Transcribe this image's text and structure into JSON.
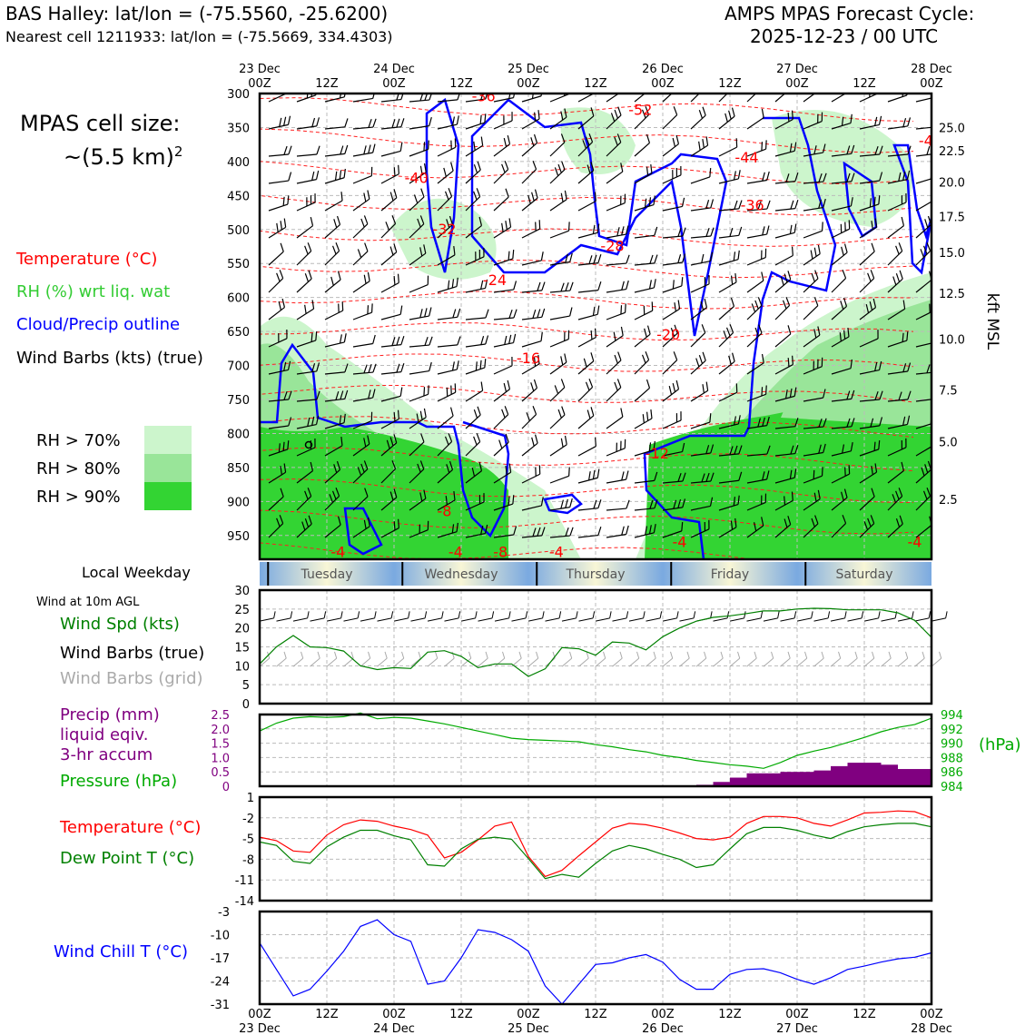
{
  "header": {
    "station_line": "BAS Halley: lat/lon = (-75.5560, -25.6200)",
    "cell_line": "Nearest cell 1211933: lat/lon = (-75.5669, 334.4303)",
    "cycle_title": "AMPS MPAS Forecast Cycle:",
    "cycle_time": "2025-12-23 / 00 UTC"
  },
  "legend": {
    "cell_size_label": "MPAS cell size:",
    "cell_size_value": "~(5.5 km)",
    "cell_size_exp": "2",
    "temperature": "Temperature (°C)",
    "rh": "RH (%) wrt liq. wat",
    "cloud": "Cloud/Precip outline",
    "wind_barbs": "Wind Barbs (kts) (true)",
    "rh70": "RH > 70%",
    "rh80": "RH > 80%",
    "rh90": "RH > 90%",
    "local_weekday": "Local Weekday",
    "wind10m": "Wind at 10m AGL",
    "wind_spd": "Wind Spd (kts)",
    "barbs_true": "Wind Barbs (true)",
    "barbs_grid": "Wind Barbs (grid)",
    "precip1": "Precip (mm)",
    "precip2": "liquid eqiv.",
    "precip3": "3-hr accum",
    "pressure": "Pressure (hPa)",
    "hpa": "(hPa)",
    "temp2": "Temperature (°C)",
    "dewpoint": "Dew Point T (°C)",
    "windchill": "Wind Chill T (°C)",
    "kft": "kft MSL"
  },
  "colors": {
    "temp": "#ff0000",
    "rh_label": "#33cc33",
    "cloud": "#0000ff",
    "wind_spd": "#008000",
    "precip": "#800080",
    "pressure": "#00aa00",
    "grid_barbs": "#aaaaaa",
    "rh70": "#ccf5cc",
    "rh80": "#99e599",
    "rh90": "#33d433"
  },
  "chart_data": [
    {
      "type": "time-height",
      "name": "cross-section",
      "x_top_labels": [
        [
          "23 Dec",
          "00Z"
        ],
        [
          "",
          "12Z"
        ],
        [
          "24 Dec",
          "00Z"
        ],
        [
          "",
          "12Z"
        ],
        [
          "25 Dec",
          "00Z"
        ],
        [
          "",
          "12Z"
        ],
        [
          "26 Dec",
          "00Z"
        ],
        [
          "",
          "12Z"
        ],
        [
          "27 Dec",
          "00Z"
        ],
        [
          "",
          "12Z"
        ],
        [
          "28 Dec",
          "00Z"
        ]
      ],
      "x_hours_range": [
        0,
        120
      ],
      "pressure_ticks": [
        300,
        350,
        400,
        450,
        500,
        550,
        600,
        650,
        700,
        750,
        800,
        850,
        900,
        950
      ],
      "ylim_hpa": [
        300,
        985
      ],
      "kft_ticks": [
        [
          "25.0",
          350
        ],
        [
          "22.5",
          384
        ],
        [
          "20.0",
          430
        ],
        [
          "17.5",
          481
        ],
        [
          "15.0",
          534
        ],
        [
          "12.5",
          594
        ],
        [
          "10.0",
          661
        ],
        [
          "7.5",
          736
        ],
        [
          "5.0",
          812
        ],
        [
          "2.5",
          897
        ]
      ],
      "temp_labels": [
        {
          "t": "-36",
          "h": 40,
          "p": 305
        },
        {
          "t": "-52",
          "h": 68,
          "p": 325
        },
        {
          "t": "-4",
          "h": 119,
          "p": 370
        },
        {
          "t": "-44",
          "h": 87,
          "p": 395
        },
        {
          "t": "-40",
          "h": 28,
          "p": 425
        },
        {
          "t": "-36",
          "h": 88,
          "p": 465
        },
        {
          "t": "-32",
          "h": 33,
          "p": 500
        },
        {
          "t": "-28",
          "h": 63,
          "p": 525
        },
        {
          "t": "-24",
          "h": 42,
          "p": 575
        },
        {
          "t": "-20",
          "h": 73,
          "p": 655
        },
        {
          "t": "-16",
          "h": 48,
          "p": 690
        },
        {
          "t": "-12",
          "h": 71,
          "p": 830
        },
        {
          "t": "-8",
          "h": 33,
          "p": 915
        },
        {
          "t": "-4",
          "h": 14,
          "p": 975
        },
        {
          "t": "-4",
          "h": 35,
          "p": 975
        },
        {
          "t": "-8",
          "h": 43,
          "p": 975
        },
        {
          "t": "-4",
          "h": 53,
          "p": 975
        },
        {
          "t": "-4",
          "h": 75,
          "p": 960
        },
        {
          "t": "-4",
          "h": 117,
          "p": 960
        }
      ]
    },
    {
      "type": "weekday-bar",
      "name": "local-weekday",
      "days": [
        "Tuesday",
        "Wednesday",
        "Thursday",
        "Friday",
        "Saturday"
      ]
    },
    {
      "type": "line",
      "name": "wind-speed",
      "title": "Wind at 10m AGL",
      "series_name": "Wind Spd (kts)",
      "x_hours": [
        0,
        3,
        6,
        9,
        12,
        15,
        18,
        21,
        24,
        27,
        30,
        33,
        36,
        39,
        42,
        45,
        48,
        51,
        54,
        57,
        60,
        63,
        66,
        69,
        72,
        75,
        78,
        81,
        84,
        87,
        90,
        93,
        96,
        99,
        102,
        105,
        108,
        111,
        114,
        117,
        120
      ],
      "values": [
        10.5,
        15,
        18,
        15,
        14.8,
        13.9,
        10,
        9,
        9.5,
        9.3,
        13.6,
        14,
        12.5,
        9.5,
        10.5,
        10.5,
        7.2,
        9.2,
        14.8,
        14.5,
        12.8,
        16.3,
        16,
        14.2,
        17.7,
        20,
        21.8,
        22.8,
        23.2,
        23.8,
        24.5,
        24.5,
        25,
        25.2,
        25.1,
        24.8,
        24.8,
        24.8,
        24,
        22,
        17.5
      ],
      "ylim": [
        0,
        30
      ],
      "yticks": [
        0,
        5,
        10,
        15,
        20,
        25,
        30
      ]
    },
    {
      "type": "bar+line",
      "name": "precip-pressure",
      "precip_ylim": [
        0,
        2.5
      ],
      "precip_ticks": [
        "0",
        "0.5",
        "1.0",
        "1.5",
        "2.0",
        "2.5"
      ],
      "precip_bars": [
        {
          "start": 78,
          "end": 81,
          "value": 0.05
        },
        {
          "start": 81,
          "end": 84,
          "value": 0.15
        },
        {
          "start": 84,
          "end": 87,
          "value": 0.3
        },
        {
          "start": 87,
          "end": 90,
          "value": 0.45
        },
        {
          "start": 90,
          "end": 93,
          "value": 0.45
        },
        {
          "start": 93,
          "end": 96,
          "value": 0.5
        },
        {
          "start": 96,
          "end": 99,
          "value": 0.5
        },
        {
          "start": 99,
          "end": 102,
          "value": 0.55
        },
        {
          "start": 102,
          "end": 105,
          "value": 0.7
        },
        {
          "start": 105,
          "end": 108,
          "value": 0.82
        },
        {
          "start": 108,
          "end": 111,
          "value": 0.82
        },
        {
          "start": 111,
          "end": 114,
          "value": 0.75
        },
        {
          "start": 114,
          "end": 117,
          "value": 0.6
        },
        {
          "start": 117,
          "end": 120,
          "value": 0.6
        }
      ],
      "pressure_ylim": [
        984,
        994
      ],
      "pressure_ticks": [
        "984",
        "986",
        "988",
        "990",
        "992",
        "994"
      ],
      "pressure_x_hours": [
        0,
        3,
        6,
        9,
        12,
        15,
        18,
        21,
        24,
        27,
        30,
        33,
        36,
        39,
        42,
        45,
        48,
        51,
        54,
        57,
        60,
        63,
        66,
        69,
        72,
        75,
        78,
        81,
        84,
        87,
        90,
        93,
        96,
        99,
        102,
        105,
        108,
        111,
        114,
        117,
        120
      ],
      "pressure_values": [
        991.7,
        992.8,
        993.5,
        993.7,
        993.6,
        993.7,
        994.2,
        993.4,
        993.6,
        993.5,
        993.1,
        992.7,
        992.2,
        991.7,
        991.2,
        990.7,
        990.5,
        990.4,
        990.3,
        990.2,
        989.8,
        989.5,
        989.1,
        988.8,
        988.3,
        988.0,
        987.6,
        987.3,
        987.0,
        986.8,
        986.5,
        987.3,
        988.3,
        988.9,
        989.4,
        990.1,
        990.8,
        991.6,
        992.2,
        992.6,
        993.5
      ]
    },
    {
      "type": "line",
      "name": "temperature-dewpoint",
      "x_hours": [
        0,
        3,
        6,
        9,
        12,
        15,
        18,
        21,
        24,
        27,
        30,
        33,
        36,
        39,
        42,
        45,
        48,
        51,
        54,
        57,
        60,
        63,
        66,
        69,
        72,
        75,
        78,
        81,
        84,
        87,
        90,
        93,
        96,
        99,
        102,
        105,
        108,
        111,
        114,
        117,
        120
      ],
      "series": [
        {
          "name": "Temperature (°C)",
          "color": "#ff0000",
          "values": [
            -4.8,
            -5.3,
            -6.8,
            -7,
            -4.5,
            -3,
            -2.3,
            -2.5,
            -3.2,
            -3.7,
            -4.5,
            -7.8,
            -7,
            -5.2,
            -3.2,
            -2.6,
            -7.6,
            -10.5,
            -9.6,
            -7.5,
            -5.5,
            -3.5,
            -2.8,
            -3,
            -3.5,
            -4.2,
            -5,
            -5.2,
            -4.8,
            -2.8,
            -1.8,
            -1.8,
            -2,
            -2.8,
            -3.2,
            -2.3,
            -1.3,
            -1.2,
            -1,
            -1.1,
            -2
          ]
        },
        {
          "name": "Dew Point T (°C)",
          "color": "#008000",
          "values": [
            -5.5,
            -6,
            -8.3,
            -8.6,
            -6.2,
            -4.8,
            -3.8,
            -3.8,
            -4.6,
            -5.2,
            -8.8,
            -9,
            -6.5,
            -5.1,
            -4.8,
            -5.1,
            -7.9,
            -10.8,
            -10.2,
            -10.6,
            -8.6,
            -6.8,
            -6,
            -6.5,
            -7.3,
            -8,
            -9.2,
            -8.8,
            -6.5,
            -4.3,
            -3.4,
            -3.4,
            -3.8,
            -4.5,
            -5,
            -4,
            -3.3,
            -3,
            -2.8,
            -2.8,
            -3.3
          ]
        }
      ],
      "ylim": [
        -14,
        1
      ],
      "yticks": [
        1,
        -2,
        -5,
        -8,
        -11,
        -14
      ]
    },
    {
      "type": "line",
      "name": "wind-chill",
      "series_name": "Wind Chill T (°C)",
      "x_hours": [
        0,
        3,
        6,
        9,
        12,
        15,
        18,
        21,
        24,
        27,
        30,
        33,
        36,
        39,
        42,
        45,
        48,
        51,
        54,
        57,
        60,
        63,
        66,
        69,
        72,
        75,
        78,
        81,
        84,
        87,
        90,
        93,
        96,
        99,
        102,
        105,
        108,
        111,
        114,
        117,
        120
      ],
      "values": [
        -12.5,
        -20.5,
        -28.5,
        -26.5,
        -21,
        -15,
        -7.5,
        -5.5,
        -10,
        -12,
        -25,
        -24,
        -17,
        -8.5,
        -9.3,
        -11.5,
        -15,
        -25.5,
        -31,
        -25,
        -19,
        -18.5,
        -17,
        -16,
        -18.3,
        -23.5,
        -26.5,
        -26.5,
        -22,
        -20.5,
        -20.3,
        -21.5,
        -23.5,
        -25,
        -23,
        -20.5,
        -19.5,
        -18.3,
        -17.3,
        -16.8,
        -15.5
      ],
      "ylim": [
        -31,
        -3
      ],
      "yticks": [
        -3,
        -10,
        -17,
        -24,
        -31
      ]
    }
  ],
  "bottom_x_labels": [
    [
      "00Z",
      "23 Dec"
    ],
    [
      "12Z",
      ""
    ],
    [
      "00Z",
      "24 Dec"
    ],
    [
      "12Z",
      ""
    ],
    [
      "00Z",
      "25 Dec"
    ],
    [
      "12Z",
      ""
    ],
    [
      "00Z",
      "26 Dec"
    ],
    [
      "12Z",
      ""
    ],
    [
      "00Z",
      "27 Dec"
    ],
    [
      "12Z",
      ""
    ],
    [
      "00Z",
      "28 Dec"
    ]
  ]
}
